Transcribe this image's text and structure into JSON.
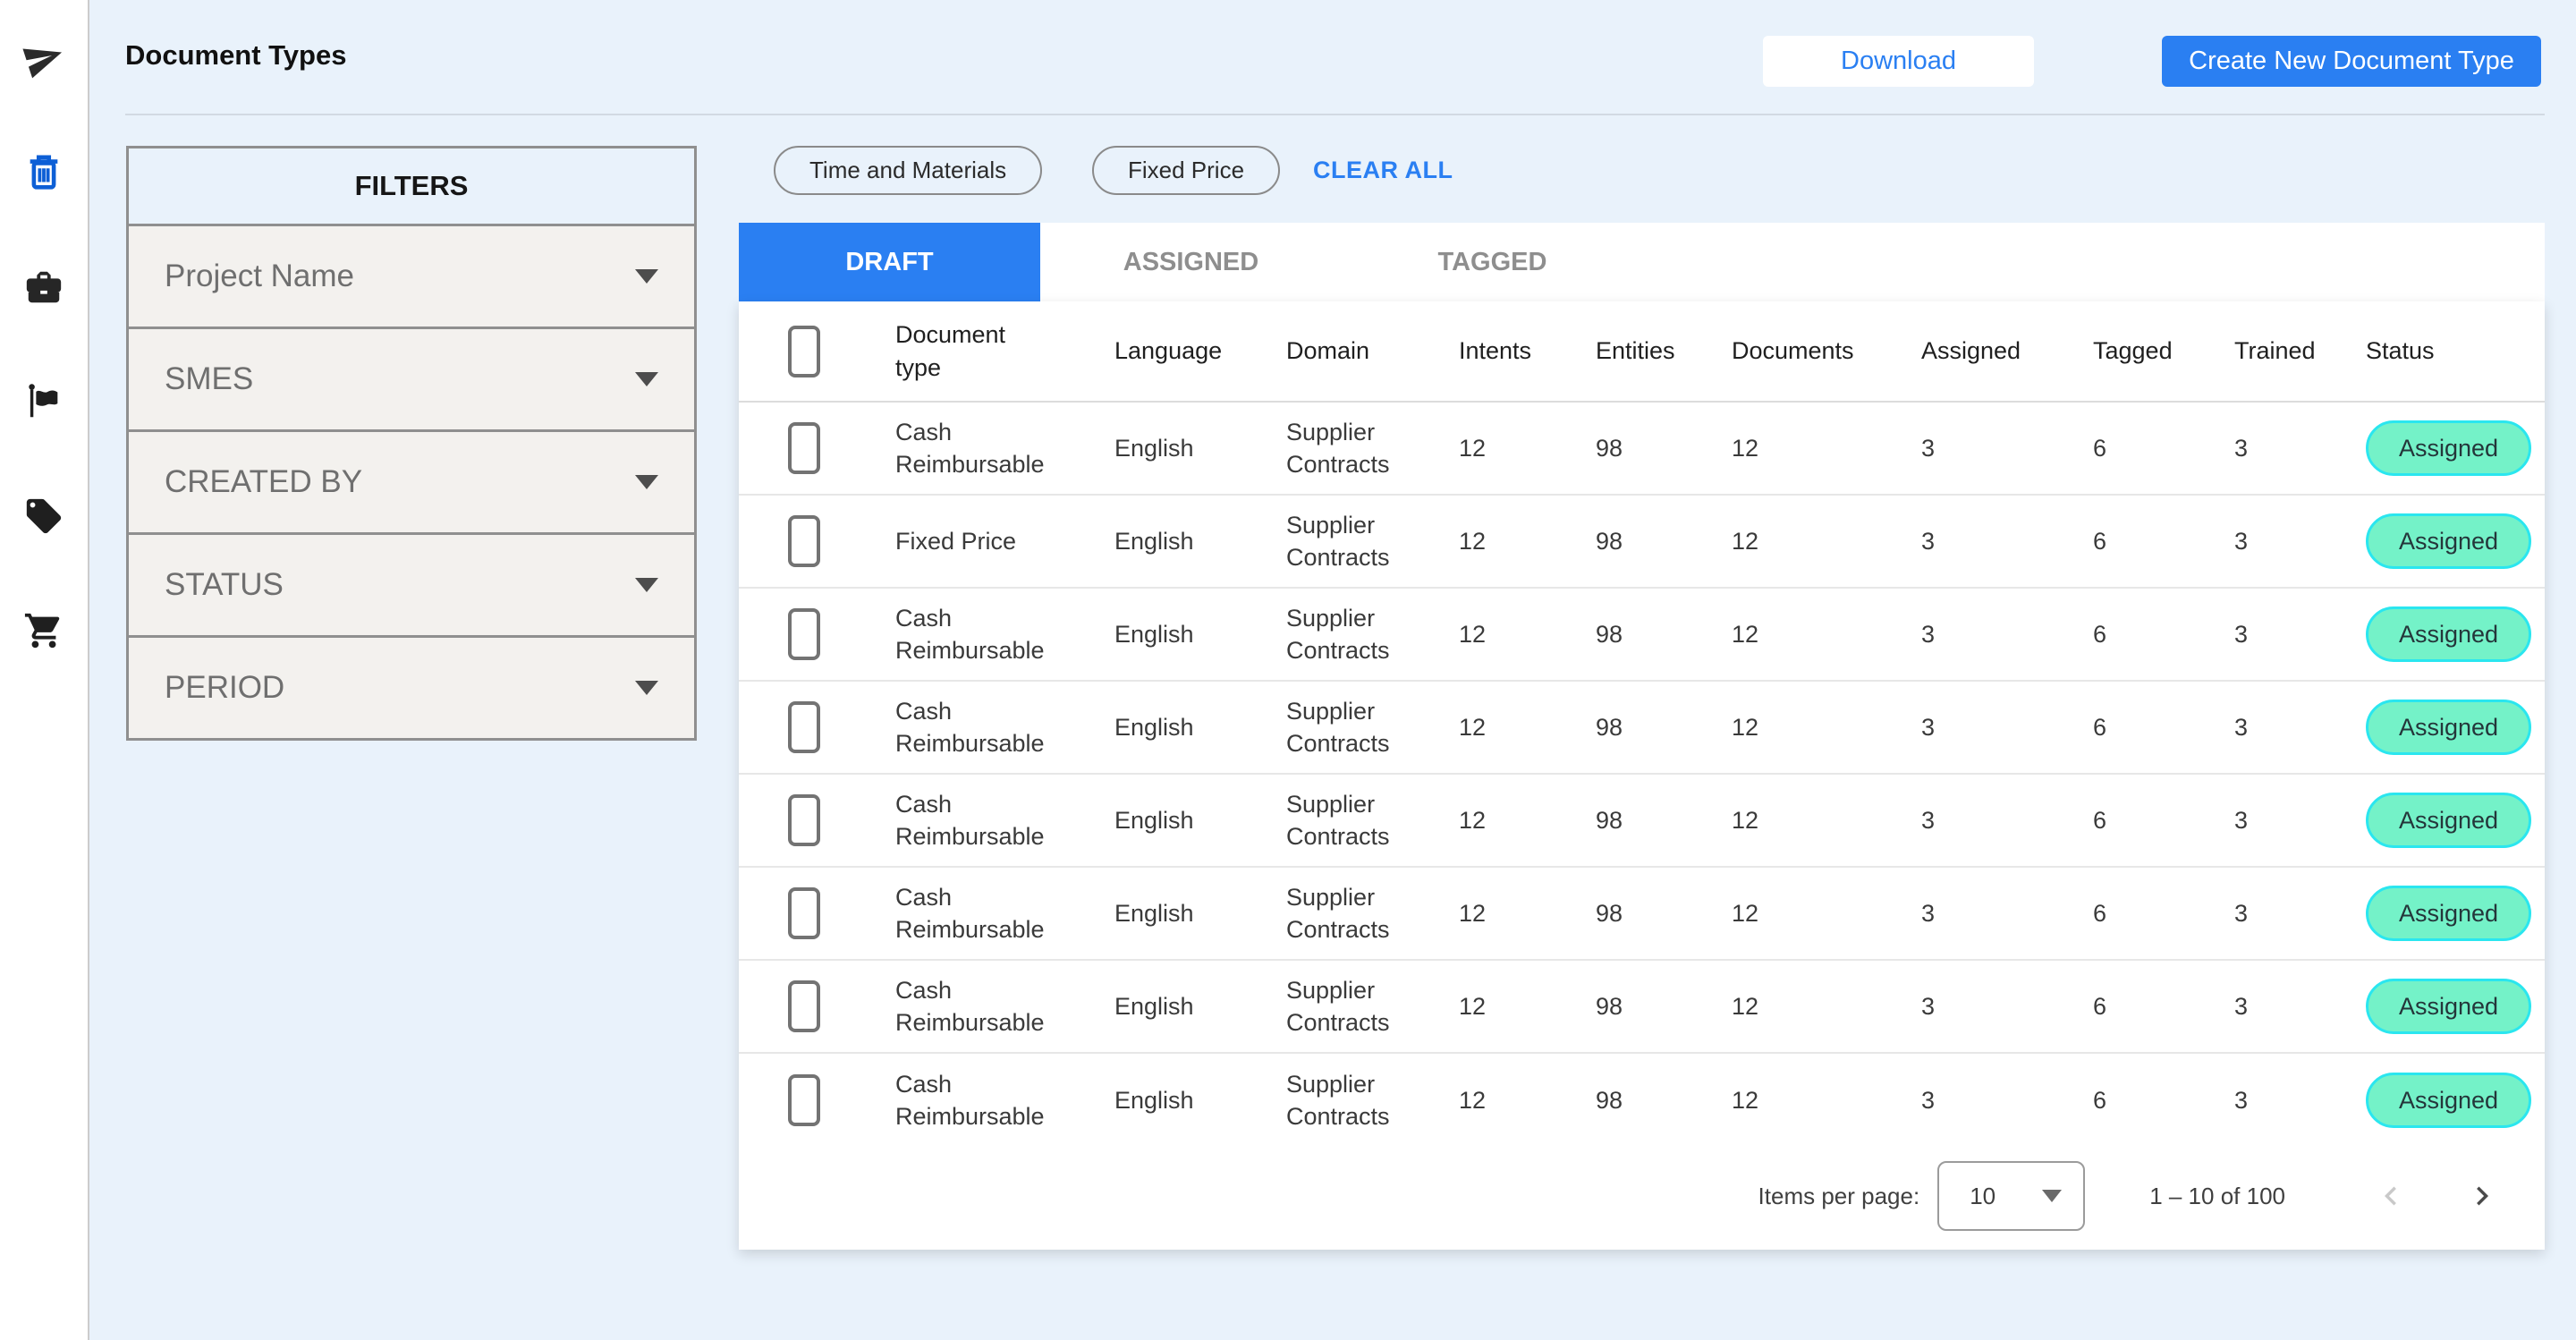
{
  "app": {
    "title": "Document Types"
  },
  "actions": {
    "download": "Download",
    "create": "Create New Document Type"
  },
  "sidebar": {
    "items": [
      {
        "icon": "send-icon"
      },
      {
        "icon": "trash-icon"
      },
      {
        "icon": "briefcase-icon"
      },
      {
        "icon": "flag-icon"
      },
      {
        "icon": "tag-icon"
      },
      {
        "icon": "cart-icon"
      }
    ]
  },
  "filters": {
    "title": "FILTERS",
    "fields": [
      {
        "label": "Project Name"
      },
      {
        "label": "SMES"
      },
      {
        "label": "CREATED BY"
      },
      {
        "label": "STATUS"
      },
      {
        "label": "PERIOD"
      }
    ]
  },
  "filter_chips": {
    "chips": [
      {
        "label": "Time and Materials"
      },
      {
        "label": "Fixed Price"
      }
    ],
    "clear_all": "CLEAR ALL"
  },
  "tabs": [
    {
      "label": "DRAFT",
      "active": true
    },
    {
      "label": "ASSIGNED",
      "active": false
    },
    {
      "label": "TAGGED",
      "active": false
    }
  ],
  "table": {
    "columns": {
      "document_type": "Document type",
      "language": "Language",
      "domain": "Domain",
      "intents": "Intents",
      "entities": "Entities",
      "documents": "Documents",
      "assigned": "Assigned",
      "tagged": "Tagged",
      "trained": "Trained",
      "status": "Status"
    },
    "rows": [
      {
        "document_type": "Cash Reimbursable",
        "language": "English",
        "domain": "Supplier Contracts",
        "intents": "12",
        "entities": "98",
        "documents": "12",
        "assigned": "3",
        "tagged": "6",
        "trained": "3",
        "status": "Assigned"
      },
      {
        "document_type": "Fixed Price",
        "language": "English",
        "domain": "Supplier Contracts",
        "intents": "12",
        "entities": "98",
        "documents": "12",
        "assigned": "3",
        "tagged": "6",
        "trained": "3",
        "status": "Assigned"
      },
      {
        "document_type": "Cash Reimbursable",
        "language": "English",
        "domain": "Supplier Contracts",
        "intents": "12",
        "entities": "98",
        "documents": "12",
        "assigned": "3",
        "tagged": "6",
        "trained": "3",
        "status": "Assigned"
      },
      {
        "document_type": "Cash Reimbursable",
        "language": "English",
        "domain": "Supplier Contracts",
        "intents": "12",
        "entities": "98",
        "documents": "12",
        "assigned": "3",
        "tagged": "6",
        "trained": "3",
        "status": "Assigned"
      },
      {
        "document_type": "Cash Reimbursable",
        "language": "English",
        "domain": "Supplier Contracts",
        "intents": "12",
        "entities": "98",
        "documents": "12",
        "assigned": "3",
        "tagged": "6",
        "trained": "3",
        "status": "Assigned"
      },
      {
        "document_type": "Cash Reimbursable",
        "language": "English",
        "domain": "Supplier Contracts",
        "intents": "12",
        "entities": "98",
        "documents": "12",
        "assigned": "3",
        "tagged": "6",
        "trained": "3",
        "status": "Assigned"
      },
      {
        "document_type": "Cash Reimbursable",
        "language": "English",
        "domain": "Supplier Contracts",
        "intents": "12",
        "entities": "98",
        "documents": "12",
        "assigned": "3",
        "tagged": "6",
        "trained": "3",
        "status": "Assigned"
      },
      {
        "document_type": "Cash Reimbursable",
        "language": "English",
        "domain": "Supplier Contracts",
        "intents": "12",
        "entities": "98",
        "documents": "12",
        "assigned": "3",
        "tagged": "6",
        "trained": "3",
        "status": "Assigned"
      }
    ]
  },
  "pagination": {
    "label": "Items per page:",
    "page_size": "10",
    "range": "1 – 10 of 100"
  },
  "colors": {
    "accent_blue": "#2a7ff2",
    "page_bg": "#e9f2fb",
    "badge_fill": "#74f2c8",
    "badge_border": "#2ae6ef",
    "trash_icon_blue": "#0d5fd6"
  }
}
